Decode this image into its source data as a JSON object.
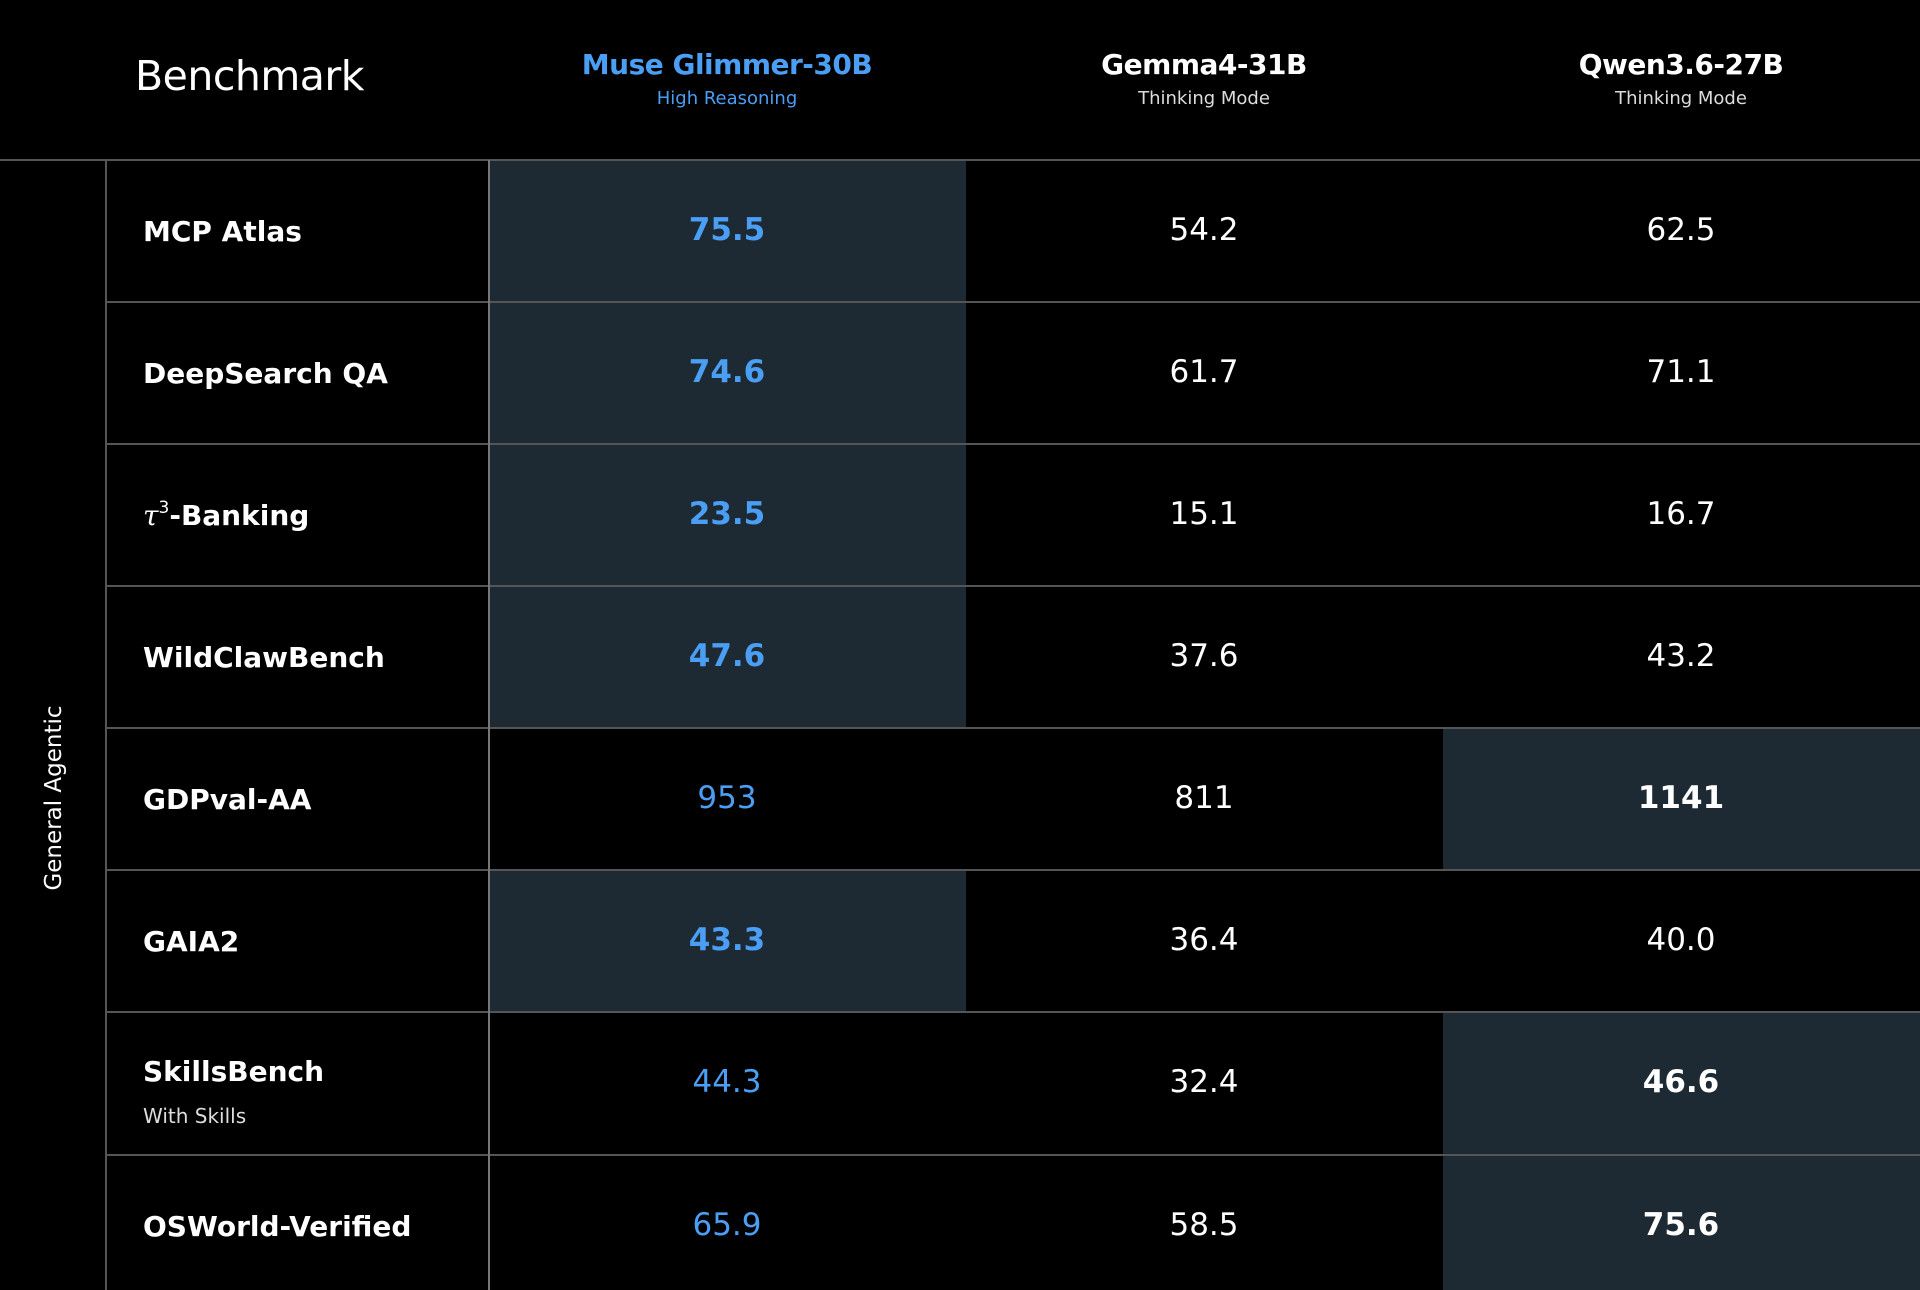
{
  "chart_data": {
    "type": "table",
    "header_label": "Benchmark",
    "group_label": "General Agentic",
    "models": [
      {
        "name": "Muse Glimmer-30B",
        "mode": "High Reasoning",
        "color": "#4a9ff5"
      },
      {
        "name": "Gemma4-31B",
        "mode": "Thinking Mode",
        "color": "#ffffff"
      },
      {
        "name": "Qwen3.6-27B",
        "mode": "Thinking Mode",
        "color": "#ffffff"
      }
    ],
    "rows": [
      {
        "benchmark": "MCP Atlas",
        "subtitle": "",
        "values": [
          "75.5",
          "54.2",
          "62.5"
        ],
        "best_index": 0
      },
      {
        "benchmark_prefix": "τ",
        "benchmark_sup": "",
        "benchmark": "DeepSearch QA",
        "subtitle": "",
        "values": [
          "74.6",
          "61.7",
          "71.1"
        ],
        "best_index": 0
      },
      {
        "benchmark_prefix": "τ",
        "benchmark_sup": "3",
        "benchmark": "-Banking",
        "subtitle": "",
        "values": [
          "23.5",
          "15.1",
          "16.7"
        ],
        "best_index": 0
      },
      {
        "benchmark": "WildClawBench",
        "subtitle": "",
        "values": [
          "47.6",
          "37.6",
          "43.2"
        ],
        "best_index": 0
      },
      {
        "benchmark": "GDPval-AA",
        "subtitle": "",
        "values": [
          "953",
          "811",
          "1141"
        ],
        "best_index": 2
      },
      {
        "benchmark": "GAIA2",
        "subtitle": "",
        "values": [
          "43.3",
          "36.4",
          "40.0"
        ],
        "best_index": 0
      },
      {
        "benchmark": "SkillsBench",
        "subtitle": "With Skills",
        "values": [
          "44.3",
          "32.4",
          "46.6"
        ],
        "best_index": 2
      },
      {
        "benchmark": "OSWorld-Verified",
        "subtitle": "",
        "values": [
          "65.9",
          "58.5",
          "75.6"
        ],
        "best_index": 2
      }
    ],
    "highlight_color": "#1e2a33"
  }
}
